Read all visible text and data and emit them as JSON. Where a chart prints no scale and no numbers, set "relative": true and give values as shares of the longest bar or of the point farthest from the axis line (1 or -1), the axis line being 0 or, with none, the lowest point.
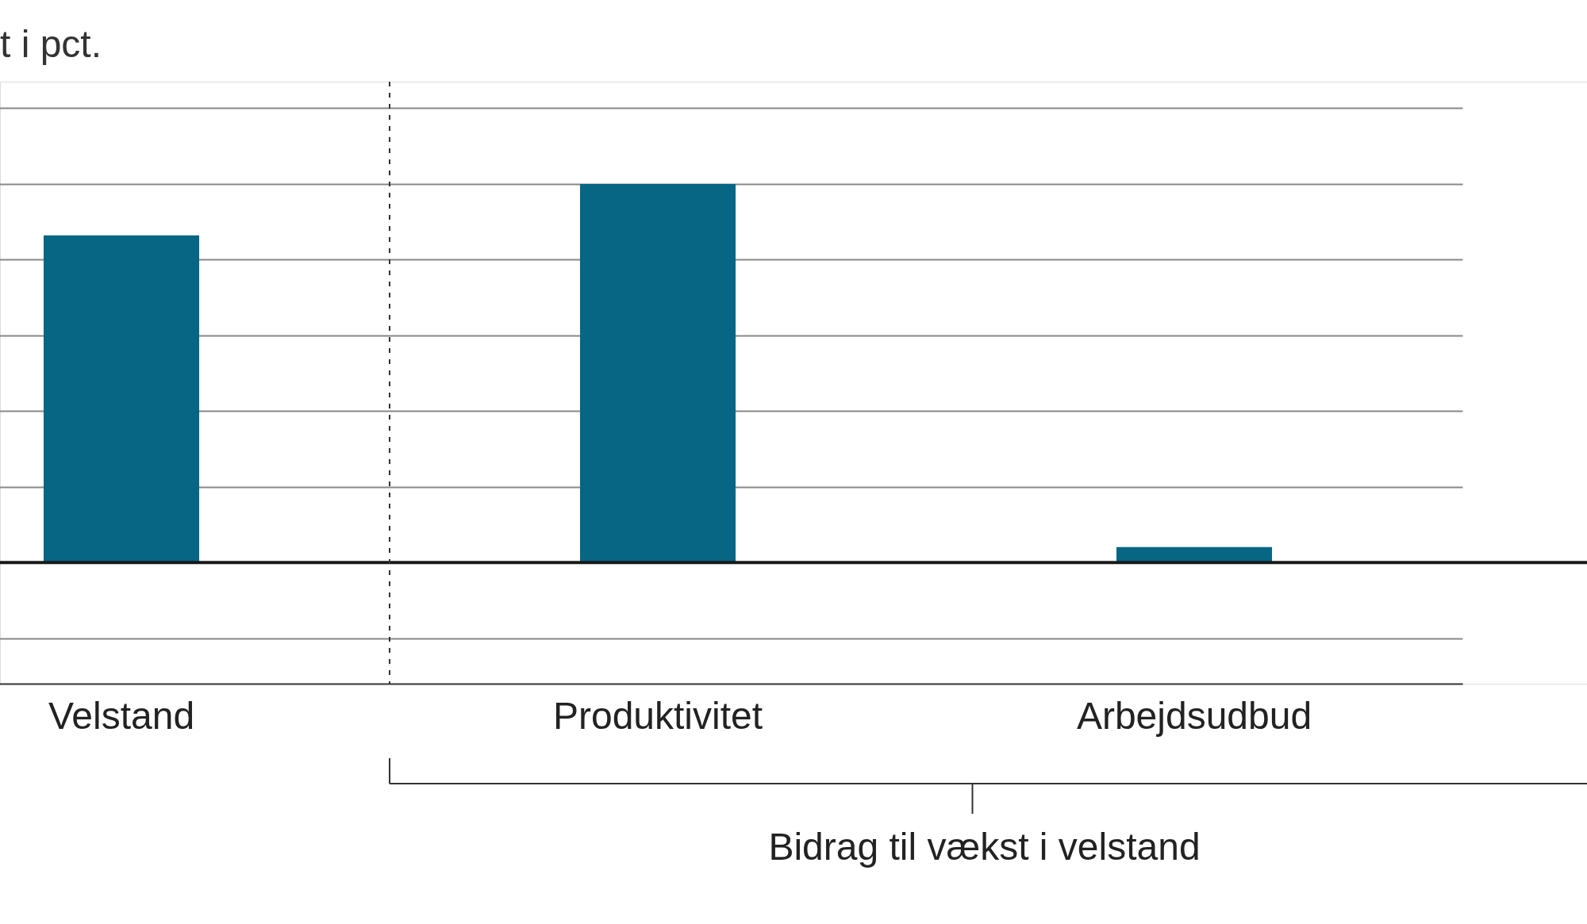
{
  "chart_data": {
    "type": "bar",
    "title": "t i pct.",
    "relative": true,
    "categories": [
      "Velstand",
      "Produktivitet",
      "Arbejdsudbud"
    ],
    "series": [
      {
        "color": "#066684",
        "values": [
          0.864,
          1,
          0.041
        ]
      }
    ],
    "grid": "y",
    "ref_lines": [
      {
        "axis": "y",
        "value": 0,
        "color": "#1a1a1a"
      }
    ],
    "annotations": [
      "Bidrag til vækst i velstand"
    ]
  }
}
